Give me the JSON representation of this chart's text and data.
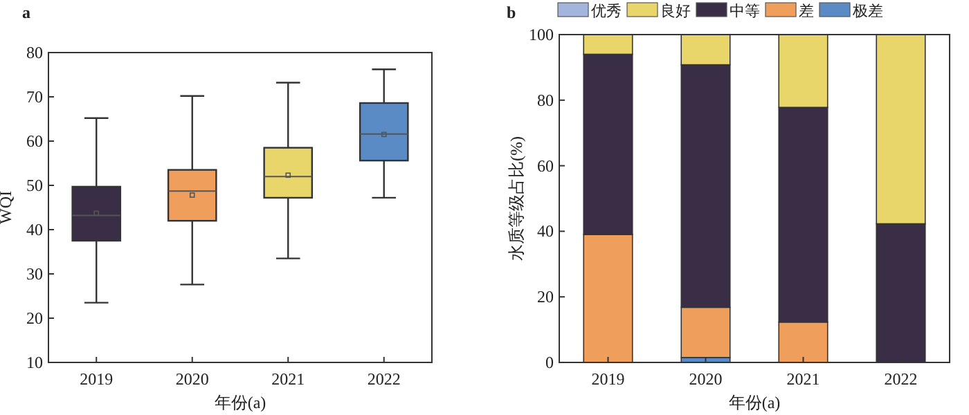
{
  "chart_data": [
    {
      "type": "box",
      "title": "a",
      "xlabel": "年份(a)",
      "ylabel": "WQI",
      "categories": [
        "2019",
        "2020",
        "2021",
        "2022"
      ],
      "boxes": [
        {
          "low": 23.5,
          "q1": 37.5,
          "median": 43.2,
          "q3": 49.7,
          "high": 65.2,
          "mean": 43.7
        },
        {
          "low": 27.6,
          "q1": 42,
          "median": 48.7,
          "q3": 53.5,
          "high": 70.2,
          "mean": 47.8
        },
        {
          "low": 33.5,
          "q1": 47.2,
          "median": 52,
          "q3": 58.5,
          "high": 73.2,
          "mean": 52.3
        },
        {
          "low": 47.2,
          "q1": 55.6,
          "median": 61.6,
          "q3": 68.6,
          "high": 76.2,
          "mean": 61.5
        }
      ],
      "colors": [
        "#3a2e46",
        "#f09e5c",
        "#e8d66a",
        "#5b8bc5"
      ],
      "ylim": [
        10,
        80
      ],
      "yticks": [
        10,
        20,
        30,
        40,
        50,
        60,
        70,
        80
      ],
      "grid": false,
      "legend": false
    },
    {
      "type": "bar",
      "title": "b",
      "xlabel": "年份(a)",
      "ylabel": "水质等级占比(%)",
      "categories": [
        "2019",
        "2020",
        "2021",
        "2022"
      ],
      "stacked": true,
      "series": [
        {
          "name": "极差",
          "color": "#5b8bc5",
          "values": [
            0,
            1.5,
            0,
            0
          ]
        },
        {
          "name": "差",
          "color": "#f09e5c",
          "values": [
            39,
            15.3,
            12.3,
            0
          ]
        },
        {
          "name": "中等",
          "color": "#3a2e46",
          "values": [
            55,
            74,
            65.5,
            42.3
          ]
        },
        {
          "name": "良好",
          "color": "#e8d66a",
          "values": [
            6,
            9.2,
            22.2,
            57.7
          ]
        },
        {
          "name": "优秀",
          "color": "#a3b5dd",
          "values": [
            0,
            0,
            0,
            0
          ]
        }
      ],
      "ylim": [
        0,
        100
      ],
      "yticks": [
        0,
        20,
        40,
        60,
        80,
        100
      ],
      "grid": false,
      "legend": "top"
    }
  ]
}
